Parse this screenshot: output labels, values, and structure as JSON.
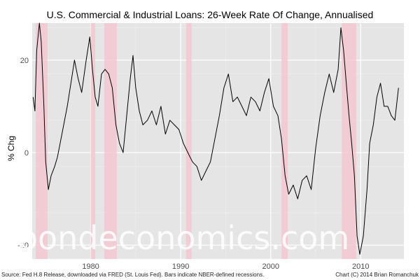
{
  "chart_data": {
    "type": "line",
    "title": "U.S. Commercial & Industrial Loans: 26-Week Rate Of Change, Annualised",
    "xlabel": "",
    "ylabel": "% Chg",
    "xlim": [
      1973.5,
      2014.8
    ],
    "ylim": [
      -23,
      28
    ],
    "x_ticks": [
      1980,
      1990,
      2000,
      2010
    ],
    "y_ticks": [
      -20,
      0,
      20
    ],
    "grid": true,
    "recessions": [
      [
        1973.9,
        1975.2
      ],
      [
        1980.0,
        1980.5
      ],
      [
        1981.5,
        1982.9
      ],
      [
        1990.6,
        1991.2
      ],
      [
        2001.2,
        2001.9
      ],
      [
        2007.9,
        2009.5
      ]
    ],
    "series": [
      {
        "color": "#000000",
        "x": [
          1973.6,
          1973.8,
          1974.0,
          1974.3,
          1974.5,
          1974.8,
          1975.0,
          1975.3,
          1975.6,
          1976.0,
          1976.3,
          1976.6,
          1977.0,
          1977.4,
          1977.8,
          1978.2,
          1978.6,
          1979.0,
          1979.5,
          1979.9,
          1980.2,
          1980.5,
          1980.8,
          1981.2,
          1981.6,
          1982.0,
          1982.4,
          1982.8,
          1983.2,
          1983.6,
          1984.0,
          1984.4,
          1984.7,
          1985.0,
          1985.4,
          1985.8,
          1986.3,
          1986.8,
          1987.3,
          1987.8,
          1988.3,
          1988.8,
          1989.3,
          1989.8,
          1990.3,
          1990.8,
          1991.3,
          1991.8,
          1992.3,
          1992.8,
          1993.3,
          1993.8,
          1994.3,
          1994.8,
          1995.3,
          1995.8,
          1996.3,
          1996.8,
          1997.3,
          1997.8,
          1998.3,
          1998.8,
          1999.3,
          1999.8,
          2000.3,
          2000.8,
          2001.2,
          2001.6,
          2002.0,
          2002.5,
          2003.0,
          2003.5,
          2004.0,
          2004.5,
          2005.0,
          2005.5,
          2006.0,
          2006.5,
          2007.0,
          2007.5,
          2007.8,
          2008.1,
          2008.4,
          2008.7,
          2009.0,
          2009.3,
          2009.6,
          2009.9,
          2010.3,
          2010.7,
          2011.0,
          2011.4,
          2011.8,
          2012.2,
          2012.6,
          2013.0,
          2013.4,
          2013.8,
          2014.2
        ],
        "y": [
          12,
          9,
          22,
          28,
          24,
          10,
          -2,
          -8,
          -5,
          -3,
          -1,
          2,
          6,
          10,
          15,
          20,
          16,
          13,
          20,
          25,
          18,
          12,
          10,
          17,
          18,
          17,
          14,
          6,
          2,
          0,
          8,
          16,
          21,
          14,
          9,
          6,
          7,
          9,
          6,
          10,
          4,
          7,
          6,
          5,
          2,
          0,
          -2,
          -3,
          -6,
          -4,
          -2,
          3,
          8,
          14,
          17,
          11,
          12,
          10,
          8,
          12,
          11,
          9,
          13,
          16,
          10,
          8,
          3,
          -5,
          -9,
          -7,
          -10,
          -6,
          -5,
          -8,
          1,
          8,
          13,
          17,
          13,
          18,
          27,
          22,
          15,
          8,
          2,
          -5,
          -18,
          -22,
          -18,
          -8,
          2,
          6,
          12,
          15,
          10,
          10,
          8,
          7,
          14
        ]
      }
    ]
  },
  "footer": {
    "source": "Source: Fed H.8 Release, downloaded via FRED (St. Louis Fed). Bars indicate NBER-defined recessions.",
    "credit": "Chart (C) 2014 Brian Romanchuk"
  },
  "watermark": "bondeconomics.com",
  "colors": {
    "panel": "#e5e5e5",
    "grid_major": "#ffffff",
    "grid_minor": "#f0f0f0",
    "recession": "#f4c6cf",
    "line": "#000000"
  }
}
